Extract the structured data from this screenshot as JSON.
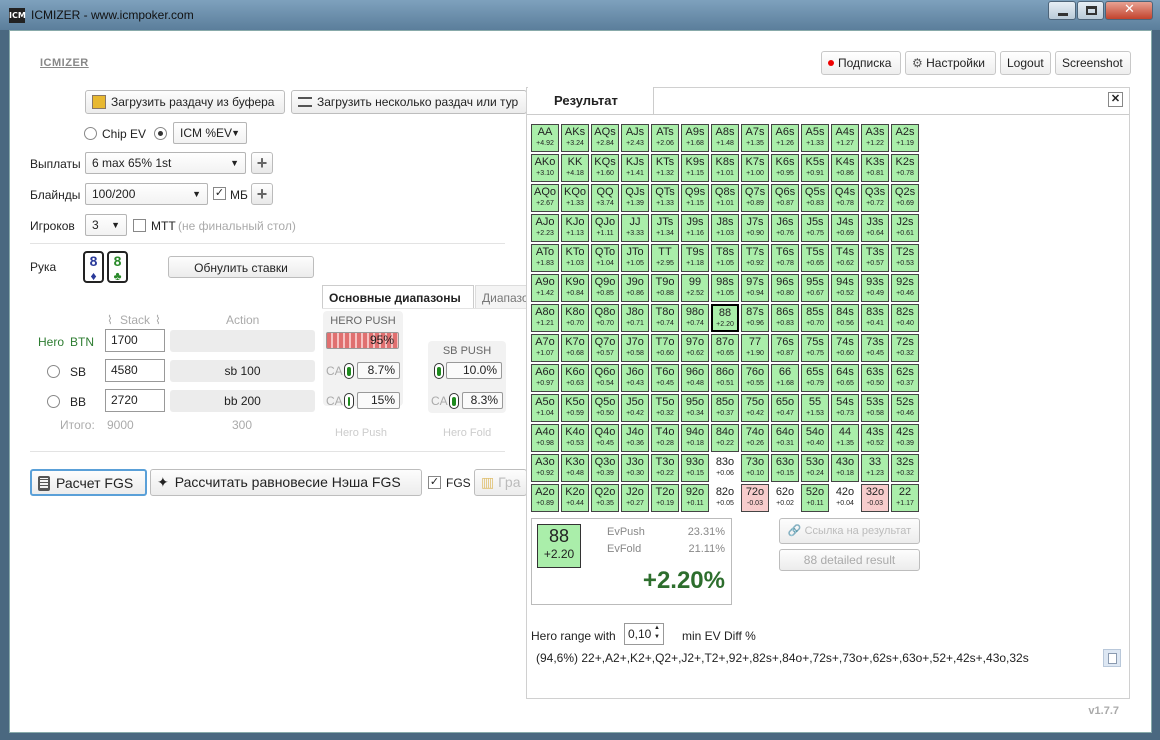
{
  "window": {
    "title": "ICMIZER - www.icmpoker.com",
    "icon": "ICM"
  },
  "header": {
    "logo": "ICMIZER",
    "subscribe": "Подписка",
    "settings": "Настройки",
    "logout": "Logout",
    "screenshot": "Screenshot"
  },
  "load": {
    "clipboard": "Загрузить раздачу из буфера",
    "multi": "Загрузить несколько раздач или тур"
  },
  "mode": {
    "chip_ev": "Chip EV",
    "icm": "ICM %EV"
  },
  "payouts": {
    "label": "Выплаты",
    "value": "6 max 65% 1st"
  },
  "blinds": {
    "label": "Блайнды",
    "value": "100/200",
    "mb": "МБ"
  },
  "players": {
    "label": "Игроков",
    "value": "3",
    "mtt": "МТТ",
    "mtt_note": "(не финальный стол)"
  },
  "hand": {
    "label": "Рука",
    "card1_rank": "8",
    "card1_suit": "♦",
    "card2_rank": "8",
    "card2_suit": "♣",
    "reset": "Обнулить ставки"
  },
  "ranges_tab": {
    "main": "Основные диапазоны",
    "other": "Диапазо"
  },
  "table": {
    "stack_header": "Stack",
    "action_header": "Action",
    "rows": [
      {
        "label": "Hero",
        "pos": "BTN",
        "stack": "1700",
        "action": ""
      },
      {
        "label": "",
        "pos": "SB",
        "stack": "4580",
        "action": "sb 100"
      },
      {
        "label": "",
        "pos": "BB",
        "stack": "2720",
        "action": "bb 200"
      }
    ],
    "total_label": "Итого:",
    "total_stack": "9000",
    "total_action": "300"
  },
  "hero_push": {
    "title": "HERO PUSH",
    "pct": "95%",
    "ca_label": "CA",
    "ca1": "8.7%",
    "ca2": "15%",
    "footer": "Hero Push"
  },
  "sb_push": {
    "title": "SB PUSH",
    "pct": "10.0%",
    "ca_label": "CA",
    "ca": "8.3%",
    "footer": "Hero Fold"
  },
  "calc": {
    "fgs": "Расчет FGS",
    "nash": "Рассчитать равновесие Нэша FGS",
    "fgs_chk": "FGS",
    "graph": "Гра"
  },
  "result": {
    "tab": "Результат",
    "selected": {
      "hand": "88",
      "value": "+2.20"
    },
    "evpush_label": "EvPush",
    "evpush": "23.31%",
    "evfold_label": "EvFold",
    "evfold": "21.11%",
    "diff": "+2.20%",
    "link": "Ссылка на результат",
    "detailed": "88 detailed result",
    "range_label": "Hero range with",
    "range_value": "0,10",
    "range_suffix": "min EV Diff %",
    "range_text": "(94,6%) 22+,A2+,K2+,Q2+,J2+,T2+,92+,82s+,84o+,72s+,73o+,62s+,63o+,52+,42s+,43o,32s"
  },
  "version": "v1.7.7",
  "colors": {
    "green": "#aaeeaa",
    "red": "#f7cccc",
    "neutral": "#ffffff",
    "push_bar": "#e07070",
    "accent": "#1d8a1d"
  },
  "grid": [
    [
      [
        "AA",
        "+4.92",
        "g"
      ],
      [
        "AKs",
        "+3.24",
        "g"
      ],
      [
        "AQs",
        "+2.84",
        "g"
      ],
      [
        "AJs",
        "+2.43",
        "g"
      ],
      [
        "ATs",
        "+2.06",
        "g"
      ],
      [
        "A9s",
        "+1.68",
        "g"
      ],
      [
        "A8s",
        "+1.48",
        "g"
      ],
      [
        "A7s",
        "+1.35",
        "g"
      ],
      [
        "A6s",
        "+1.26",
        "g"
      ],
      [
        "A5s",
        "+1.33",
        "g"
      ],
      [
        "A4s",
        "+1.27",
        "g"
      ],
      [
        "A3s",
        "+1.22",
        "g"
      ],
      [
        "A2s",
        "+1.19",
        "g"
      ]
    ],
    [
      [
        "AKo",
        "+3.10",
        "g"
      ],
      [
        "KK",
        "+4.18",
        "g"
      ],
      [
        "KQs",
        "+1.60",
        "g"
      ],
      [
        "KJs",
        "+1.41",
        "g"
      ],
      [
        "KTs",
        "+1.32",
        "g"
      ],
      [
        "K9s",
        "+1.15",
        "g"
      ],
      [
        "K8s",
        "+1.01",
        "g"
      ],
      [
        "K7s",
        "+1.00",
        "g"
      ],
      [
        "K6s",
        "+0.95",
        "g"
      ],
      [
        "K5s",
        "+0.91",
        "g"
      ],
      [
        "K4s",
        "+0.86",
        "g"
      ],
      [
        "K3s",
        "+0.81",
        "g"
      ],
      [
        "K2s",
        "+0.78",
        "g"
      ]
    ],
    [
      [
        "AQo",
        "+2.67",
        "g"
      ],
      [
        "KQo",
        "+1.33",
        "g"
      ],
      [
        "QQ",
        "+3.74",
        "g"
      ],
      [
        "QJs",
        "+1.39",
        "g"
      ],
      [
        "QTs",
        "+1.33",
        "g"
      ],
      [
        "Q9s",
        "+1.15",
        "g"
      ],
      [
        "Q8s",
        "+1.01",
        "g"
      ],
      [
        "Q7s",
        "+0.89",
        "g"
      ],
      [
        "Q6s",
        "+0.87",
        "g"
      ],
      [
        "Q5s",
        "+0.83",
        "g"
      ],
      [
        "Q4s",
        "+0.78",
        "g"
      ],
      [
        "Q3s",
        "+0.72",
        "g"
      ],
      [
        "Q2s",
        "+0.69",
        "g"
      ]
    ],
    [
      [
        "AJo",
        "+2.23",
        "g"
      ],
      [
        "KJo",
        "+1.13",
        "g"
      ],
      [
        "QJo",
        "+1.11",
        "g"
      ],
      [
        "JJ",
        "+3.33",
        "g"
      ],
      [
        "JTs",
        "+1.34",
        "g"
      ],
      [
        "J9s",
        "+1.16",
        "g"
      ],
      [
        "J8s",
        "+1.03",
        "g"
      ],
      [
        "J7s",
        "+0.90",
        "g"
      ],
      [
        "J6s",
        "+0.76",
        "g"
      ],
      [
        "J5s",
        "+0.75",
        "g"
      ],
      [
        "J4s",
        "+0.69",
        "g"
      ],
      [
        "J3s",
        "+0.64",
        "g"
      ],
      [
        "J2s",
        "+0.61",
        "g"
      ]
    ],
    [
      [
        "ATo",
        "+1.83",
        "g"
      ],
      [
        "KTo",
        "+1.03",
        "g"
      ],
      [
        "QTo",
        "+1.04",
        "g"
      ],
      [
        "JTo",
        "+1.05",
        "g"
      ],
      [
        "TT",
        "+2.95",
        "g"
      ],
      [
        "T9s",
        "+1.18",
        "g"
      ],
      [
        "T8s",
        "+1.05",
        "g"
      ],
      [
        "T7s",
        "+0.92",
        "g"
      ],
      [
        "T6s",
        "+0.78",
        "g"
      ],
      [
        "T5s",
        "+0.65",
        "g"
      ],
      [
        "T4s",
        "+0.62",
        "g"
      ],
      [
        "T3s",
        "+0.57",
        "g"
      ],
      [
        "T2s",
        "+0.53",
        "g"
      ]
    ],
    [
      [
        "A9o",
        "+1.42",
        "g"
      ],
      [
        "K9o",
        "+0.84",
        "g"
      ],
      [
        "Q9o",
        "+0.85",
        "g"
      ],
      [
        "J9o",
        "+0.86",
        "g"
      ],
      [
        "T9o",
        "+0.88",
        "g"
      ],
      [
        "99",
        "+2.52",
        "g"
      ],
      [
        "98s",
        "+1.05",
        "g"
      ],
      [
        "97s",
        "+0.94",
        "g"
      ],
      [
        "96s",
        "+0.80",
        "g"
      ],
      [
        "95s",
        "+0.67",
        "g"
      ],
      [
        "94s",
        "+0.52",
        "g"
      ],
      [
        "93s",
        "+0.49",
        "g"
      ],
      [
        "92s",
        "+0.46",
        "g"
      ]
    ],
    [
      [
        "A8o",
        "+1.21",
        "g"
      ],
      [
        "K8o",
        "+0.70",
        "g"
      ],
      [
        "Q8o",
        "+0.70",
        "g"
      ],
      [
        "J8o",
        "+0.71",
        "g"
      ],
      [
        "T8o",
        "+0.74",
        "g"
      ],
      [
        "98o",
        "+0.74",
        "g"
      ],
      [
        "88",
        "+2.20",
        "g"
      ],
      [
        "87s",
        "+0.96",
        "g"
      ],
      [
        "86s",
        "+0.83",
        "g"
      ],
      [
        "85s",
        "+0.70",
        "g"
      ],
      [
        "84s",
        "+0.56",
        "g"
      ],
      [
        "83s",
        "+0.41",
        "g"
      ],
      [
        "82s",
        "+0.40",
        "g"
      ]
    ],
    [
      [
        "A7o",
        "+1.07",
        "g"
      ],
      [
        "K7o",
        "+0.68",
        "g"
      ],
      [
        "Q7o",
        "+0.57",
        "g"
      ],
      [
        "J7o",
        "+0.58",
        "g"
      ],
      [
        "T7o",
        "+0.60",
        "g"
      ],
      [
        "97o",
        "+0.62",
        "g"
      ],
      [
        "87o",
        "+0.65",
        "g"
      ],
      [
        "77",
        "+1.90",
        "g"
      ],
      [
        "76s",
        "+0.87",
        "g"
      ],
      [
        "75s",
        "+0.75",
        "g"
      ],
      [
        "74s",
        "+0.60",
        "g"
      ],
      [
        "73s",
        "+0.45",
        "g"
      ],
      [
        "72s",
        "+0.32",
        "g"
      ]
    ],
    [
      [
        "A6o",
        "+0.97",
        "g"
      ],
      [
        "K6o",
        "+0.63",
        "g"
      ],
      [
        "Q6o",
        "+0.54",
        "g"
      ],
      [
        "J6o",
        "+0.43",
        "g"
      ],
      [
        "T6o",
        "+0.45",
        "g"
      ],
      [
        "96o",
        "+0.48",
        "g"
      ],
      [
        "86o",
        "+0.51",
        "g"
      ],
      [
        "76o",
        "+0.55",
        "g"
      ],
      [
        "66",
        "+1.68",
        "g"
      ],
      [
        "65s",
        "+0.79",
        "g"
      ],
      [
        "64s",
        "+0.65",
        "g"
      ],
      [
        "63s",
        "+0.50",
        "g"
      ],
      [
        "62s",
        "+0.37",
        "g"
      ]
    ],
    [
      [
        "A5o",
        "+1.04",
        "g"
      ],
      [
        "K5o",
        "+0.59",
        "g"
      ],
      [
        "Q5o",
        "+0.50",
        "g"
      ],
      [
        "J5o",
        "+0.42",
        "g"
      ],
      [
        "T5o",
        "+0.32",
        "g"
      ],
      [
        "95o",
        "+0.34",
        "g"
      ],
      [
        "85o",
        "+0.37",
        "g"
      ],
      [
        "75o",
        "+0.42",
        "g"
      ],
      [
        "65o",
        "+0.47",
        "g"
      ],
      [
        "55",
        "+1.53",
        "g"
      ],
      [
        "54s",
        "+0.73",
        "g"
      ],
      [
        "53s",
        "+0.58",
        "g"
      ],
      [
        "52s",
        "+0.46",
        "g"
      ]
    ],
    [
      [
        "A4o",
        "+0.98",
        "g"
      ],
      [
        "K4o",
        "+0.53",
        "g"
      ],
      [
        "Q4o",
        "+0.45",
        "g"
      ],
      [
        "J4o",
        "+0.36",
        "g"
      ],
      [
        "T4o",
        "+0.28",
        "g"
      ],
      [
        "94o",
        "+0.18",
        "g"
      ],
      [
        "84o",
        "+0.22",
        "g"
      ],
      [
        "74o",
        "+0.26",
        "g"
      ],
      [
        "64o",
        "+0.31",
        "g"
      ],
      [
        "54o",
        "+0.40",
        "g"
      ],
      [
        "44",
        "+1.35",
        "g"
      ],
      [
        "43s",
        "+0.52",
        "g"
      ],
      [
        "42s",
        "+0.39",
        "g"
      ]
    ],
    [
      [
        "A3o",
        "+0.92",
        "g"
      ],
      [
        "K3o",
        "+0.48",
        "g"
      ],
      [
        "Q3o",
        "+0.39",
        "g"
      ],
      [
        "J3o",
        "+0.30",
        "g"
      ],
      [
        "T3o",
        "+0.22",
        "g"
      ],
      [
        "93o",
        "+0.15",
        "g"
      ],
      [
        "83o",
        "+0.06",
        "w"
      ],
      [
        "73o",
        "+0.10",
        "g"
      ],
      [
        "63o",
        "+0.15",
        "g"
      ],
      [
        "53o",
        "+0.24",
        "g"
      ],
      [
        "43o",
        "+0.18",
        "g"
      ],
      [
        "33",
        "+1.23",
        "g"
      ],
      [
        "32s",
        "+0.32",
        "g"
      ]
    ],
    [
      [
        "A2o",
        "+0.89",
        "g"
      ],
      [
        "K2o",
        "+0.44",
        "g"
      ],
      [
        "Q2o",
        "+0.35",
        "g"
      ],
      [
        "J2o",
        "+0.27",
        "g"
      ],
      [
        "T2o",
        "+0.19",
        "g"
      ],
      [
        "92o",
        "+0.11",
        "g"
      ],
      [
        "82o",
        "+0.05",
        "w"
      ],
      [
        "72o",
        "-0.03",
        "r"
      ],
      [
        "62o",
        "+0.02",
        "w"
      ],
      [
        "52o",
        "+0.11",
        "g"
      ],
      [
        "42o",
        "+0.04",
        "w"
      ],
      [
        "32o",
        "-0.03",
        "r"
      ],
      [
        "22",
        "+1.17",
        "g"
      ]
    ]
  ]
}
